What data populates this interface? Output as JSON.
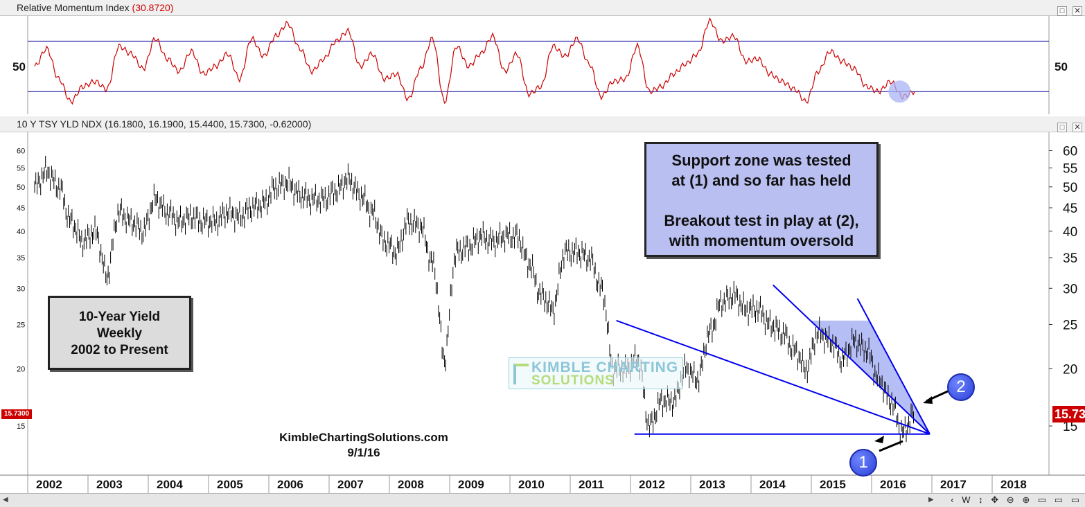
{
  "momentum_panel": {
    "title": "Relative Momentum Index",
    "value_text": "(30.8720)"
  },
  "price_panel": {
    "title": "10 Y TSY YLD NDX (16.1800, 16.1900, 15.4400, 15.7300, -0.62000)"
  },
  "window_buttons": {
    "restore": "□",
    "close": "✕"
  },
  "callouts": {
    "support_line1": "Support zone was tested",
    "support_line2": "at (1) and so far has held",
    "support_line3": "Breakout test in play at (2),",
    "support_line4": "with momentum oversold",
    "label_line1": "10-Year Yield",
    "label_line2": "Weekly",
    "label_line3": "2002 to Present"
  },
  "site": {
    "name": "KimbleChartingSolutions.com",
    "date": "9/1/16"
  },
  "watermark": {
    "line1": "KIMBLE CHARTING",
    "line2": "SOLUTIONS"
  },
  "badges": {
    "one": "1",
    "two": "2"
  },
  "price_tags": {
    "left": "15.7300",
    "right": "15.73"
  },
  "footer_tools": [
    "‹",
    "W",
    "↕",
    "✥",
    "⊖",
    "⊕",
    "▭",
    "▭",
    "▭"
  ],
  "colors": {
    "momentum_line": "#cc0000",
    "reference_lines": "#00009a",
    "trendlines": "#0000ee",
    "wedge_fill": "#a9b3f5",
    "callout_fill": "#b9bff0",
    "price_bars": "#000000",
    "current_price": "#cc0000"
  },
  "chart_data": [
    {
      "type": "line",
      "title": "Relative Momentum Index",
      "y_tick_labels": [
        "50",
        "50"
      ],
      "y_ticks": [
        50
      ],
      "reference_levels": [
        70,
        30
      ],
      "ylim": [
        12,
        90
      ],
      "current_value": 30.872,
      "x_range": [
        2002,
        2018.6
      ],
      "series": [
        {
          "x": [
            2002.0,
            2002.2,
            2002.4,
            2002.6,
            2002.8,
            2003.0,
            2003.2,
            2003.4,
            2003.6,
            2003.8,
            2004.0,
            2004.2,
            2004.4,
            2004.6,
            2004.8,
            2005.0,
            2005.2,
            2005.4,
            2005.6,
            2005.8,
            2006.0,
            2006.2,
            2006.4,
            2006.6,
            2006.8,
            2007.0,
            2007.2,
            2007.4,
            2007.6,
            2007.8,
            2008.0,
            2008.2,
            2008.4,
            2008.6,
            2008.8,
            2009.0,
            2009.2,
            2009.4,
            2009.6,
            2009.8,
            2010.0,
            2010.2,
            2010.4,
            2010.6,
            2010.8,
            2011.0,
            2011.2,
            2011.4,
            2011.6,
            2011.8,
            2012.0,
            2012.2,
            2012.4,
            2012.6,
            2012.8,
            2013.0,
            2013.2,
            2013.4,
            2013.6,
            2013.8,
            2014.0,
            2014.2,
            2014.4,
            2014.6,
            2014.8,
            2015.0,
            2015.2,
            2015.4,
            2015.6,
            2015.8,
            2016.0,
            2016.2,
            2016.4,
            2016.6
          ],
          "values": [
            50,
            64,
            40,
            22,
            34,
            38,
            32,
            66,
            60,
            48,
            72,
            56,
            46,
            62,
            44,
            50,
            60,
            40,
            72,
            58,
            74,
            84,
            64,
            46,
            56,
            70,
            78,
            50,
            60,
            40,
            44,
            24,
            48,
            72,
            22,
            66,
            50,
            60,
            74,
            46,
            60,
            28,
            34,
            66,
            58,
            72,
            52,
            26,
            38,
            40,
            66,
            30,
            34,
            44,
            52,
            60,
            86,
            70,
            74,
            54,
            56,
            44,
            38,
            32,
            22,
            46,
            62,
            54,
            48,
            34,
            30,
            38,
            26,
            30
          ]
        }
      ]
    },
    {
      "type": "line",
      "title": "10 Y TSY YLD NDX",
      "y_scale": "log",
      "y_tick_labels": [
        "15",
        "20",
        "25",
        "30",
        "35",
        "40",
        "45",
        "50",
        "55",
        "60"
      ],
      "ylim": [
        12,
        64
      ],
      "x_tick_labels": [
        "2002",
        "2003",
        "2004",
        "2005",
        "2006",
        "2007",
        "2008",
        "2009",
        "2010",
        "2011",
        "2012",
        "2013",
        "2014",
        "2015",
        "2016",
        "2017",
        "2018"
      ],
      "ohlc_last": {
        "open": 16.18,
        "high": 16.19,
        "low": 15.44,
        "close": 15.73,
        "change": -0.62
      },
      "current_value": 15.73,
      "series": [
        {
          "x": [
            2002.0,
            2002.2,
            2002.4,
            2002.6,
            2002.8,
            2003.0,
            2003.2,
            2003.4,
            2003.6,
            2003.8,
            2004.0,
            2004.2,
            2004.4,
            2004.6,
            2004.8,
            2005.0,
            2005.2,
            2005.4,
            2005.6,
            2005.8,
            2006.0,
            2006.2,
            2006.4,
            2006.6,
            2006.8,
            2007.0,
            2007.2,
            2007.4,
            2007.6,
            2007.8,
            2008.0,
            2008.2,
            2008.4,
            2008.6,
            2008.8,
            2009.0,
            2009.2,
            2009.4,
            2009.6,
            2009.8,
            2010.0,
            2010.2,
            2010.4,
            2010.6,
            2010.8,
            2011.0,
            2011.2,
            2011.4,
            2011.6,
            2011.8,
            2012.0,
            2012.2,
            2012.4,
            2012.6,
            2012.8,
            2013.0,
            2013.2,
            2013.4,
            2013.6,
            2013.8,
            2014.0,
            2014.2,
            2014.4,
            2014.6,
            2014.8,
            2015.0,
            2015.2,
            2015.4,
            2015.6,
            2015.8,
            2016.0,
            2016.2,
            2016.4,
            2016.6
          ],
          "values": [
            50,
            54,
            50,
            42,
            38,
            40,
            32,
            44,
            42,
            40,
            47,
            44,
            42,
            43,
            42,
            42,
            44,
            43,
            45,
            46,
            50,
            51,
            48,
            47,
            47,
            49,
            52,
            48,
            44,
            38,
            36,
            42,
            41,
            34,
            21,
            36,
            37,
            39,
            38,
            39,
            39,
            34,
            29,
            27,
            36,
            36,
            35,
            30,
            20,
            20,
            21,
            15,
            17,
            17,
            20,
            19,
            24,
            28,
            29,
            27,
            27,
            25,
            24,
            22,
            20,
            24,
            23,
            21,
            23,
            22,
            19,
            17,
            14.5,
            16
          ]
        }
      ],
      "annotations": [
        {
          "type": "trendline",
          "name": "upper wedge line",
          "x": [
            2011.65,
            2016.85
          ],
          "y": [
            25.5,
            14.4
          ]
        },
        {
          "type": "trendline",
          "name": "support line",
          "x": [
            2011.95,
            2016.85
          ],
          "y": [
            14.4,
            14.4
          ]
        },
        {
          "type": "trendline",
          "name": "falling channel upper",
          "x": [
            2015.65,
            2016.85
          ],
          "y": [
            28.5,
            14.4
          ]
        },
        {
          "type": "trendline",
          "name": "falling channel lower",
          "x": [
            2014.25,
            2016.85
          ],
          "y": [
            30.5,
            14.4
          ]
        },
        {
          "type": "marker",
          "label": "1",
          "x": 2016.3,
          "y": 14.4
        },
        {
          "type": "marker",
          "label": "2",
          "x": 2016.45,
          "y": 16.2
        },
        {
          "type": "highlight",
          "name": "oversold circle",
          "x": 2016.35,
          "y": 30
        }
      ]
    }
  ]
}
